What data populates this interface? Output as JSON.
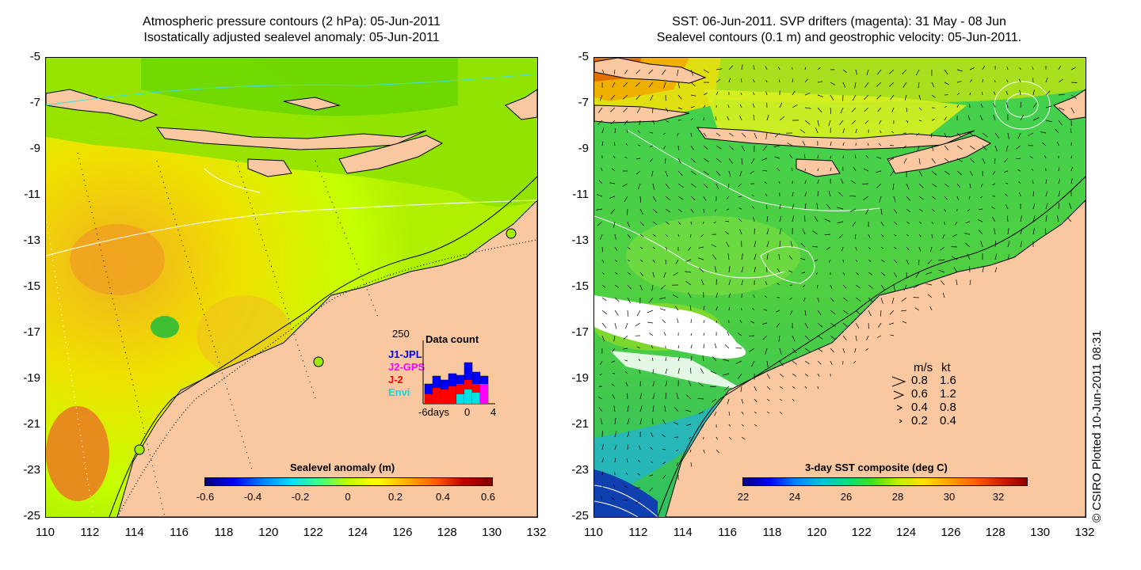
{
  "left_panel": {
    "title_line1": "Atmospheric pressure contours (2 hPa): 05-Jun-2011",
    "title_line2": "Isostatically adjusted sealevel anomaly: 05-Jun-2011",
    "colorbar_label": "Sealevel anomaly (m)",
    "colorbar_ticks": [
      "-0.6",
      "-0.4",
      "-0.2",
      "0",
      "0.2",
      "0.4",
      "0.6"
    ],
    "data_count": {
      "title": "Data count",
      "max_label": "250",
      "series": [
        {
          "name": "J1-JPL",
          "color": "#0000ff"
        },
        {
          "name": "J2-GPS",
          "color": "#ff00ff"
        },
        {
          "name": "J-2",
          "color": "#ff0000"
        },
        {
          "name": "Envi",
          "color": "#00e0e0"
        }
      ],
      "x_labels": [
        "-6days",
        "0",
        "4"
      ]
    }
  },
  "right_panel": {
    "title_line1": "SST: 06-Jun-2011. SVP drifters (magenta): 31 May - 08 Jun",
    "title_line2": "Sealevel contours (0.1 m) and geostrophic velocity: 05-Jun-2011.",
    "colorbar_label": "3-day SST composite (deg C)",
    "colorbar_ticks": [
      "22",
      "24",
      "26",
      "28",
      "30",
      "32"
    ],
    "velocity_legend": {
      "header_ms": "m/s",
      "header_kt": "kt",
      "rows": [
        {
          "ms": "0.8",
          "kt": "1.6"
        },
        {
          "ms": "0.6",
          "kt": "1.2"
        },
        {
          "ms": "0.4",
          "kt": "0.8"
        },
        {
          "ms": "0.2",
          "kt": "0.4"
        }
      ]
    }
  },
  "axes": {
    "y_ticks": [
      "-5",
      "-7",
      "-9",
      "-11",
      "-13",
      "-15",
      "-17",
      "-19",
      "-21",
      "-23",
      "-25"
    ],
    "x_ticks": [
      "110",
      "112",
      "114",
      "116",
      "118",
      "120",
      "122",
      "124",
      "126",
      "128",
      "130",
      "132"
    ]
  },
  "credit": "© CSIRO Plotted 10-Jun-2011 08:31",
  "colors": {
    "land": "#f9c8a0",
    "ocean_green": "#7fe000",
    "ocean_lime": "#c6ff00",
    "ocean_yellow": "#f0f000",
    "ocean_orange": "#f0b000",
    "sst_green": "#40d040",
    "sst_yellow": "#e0f000"
  }
}
